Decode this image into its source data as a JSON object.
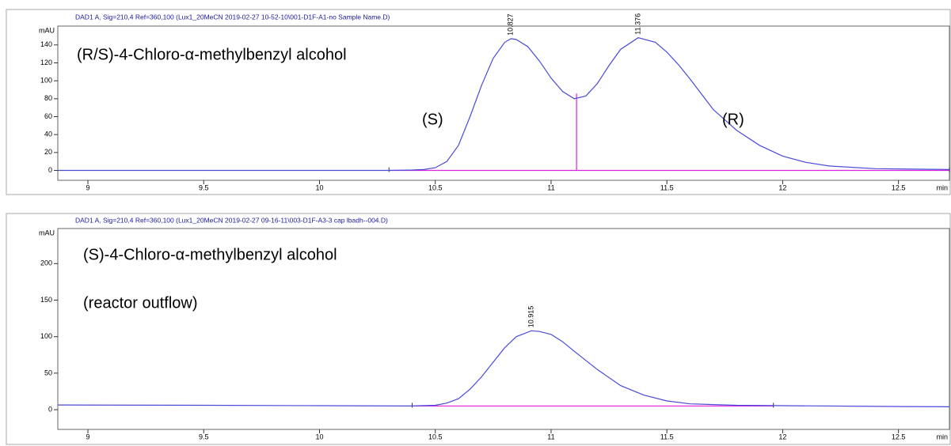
{
  "chart_data": [
    {
      "type": "line",
      "title": "DAD1 A, Sig=210,4 Ref=360,100 (Lux1_20MeCN 2019-02-27 10-52-10\\001-D1F-A1-no Sample Name.D)",
      "y_label": "mAU",
      "x_label": "min",
      "annotations": [
        "(R/S)-4-Chloro-α-methylbenzyl alcohol",
        "(S)",
        "(R)"
      ],
      "x": [
        8.87,
        9.5,
        10.0,
        10.3,
        10.4,
        10.45,
        10.5,
        10.55,
        10.6,
        10.65,
        10.7,
        10.75,
        10.8,
        10.827,
        10.85,
        10.9,
        10.95,
        11.0,
        11.05,
        11.1,
        11.15,
        11.2,
        11.25,
        11.3,
        11.376,
        11.45,
        11.5,
        11.55,
        11.6,
        11.7,
        11.8,
        11.9,
        12.0,
        12.1,
        12.2,
        12.4,
        12.72
      ],
      "values": [
        0,
        0,
        0,
        0,
        0.5,
        1,
        3,
        10,
        28,
        60,
        95,
        125,
        143,
        147,
        146,
        138,
        122,
        103,
        88,
        80,
        83,
        97,
        117,
        135,
        148,
        143,
        132,
        118,
        102,
        68,
        45,
        28,
        16,
        9,
        5,
        2,
        1
      ],
      "color": "#4a4ad8",
      "peaks": [
        10.827,
        11.376
      ],
      "integration": {
        "start": 10.3,
        "end": 12.72,
        "level": 0,
        "drops": [
          11.11
        ],
        "color": "#e020e0"
      },
      "xlim": [
        8.87,
        12.72
      ],
      "ylim": [
        -11,
        161
      ],
      "xticks": [
        9,
        9.5,
        10,
        10.5,
        11,
        11.5,
        12,
        12.5
      ],
      "yticks": [
        0,
        20,
        40,
        60,
        80,
        100,
        120,
        140
      ]
    },
    {
      "type": "line",
      "title": "DAD1 A, Sig=210,4 Ref=360,100 (Lux1_20MeCN 2019-02-27 09-16-11\\003-D1F-A3-3 cap lbadh--004.D)",
      "y_label": "mAU",
      "x_label": "min",
      "annotations": [
        "(S)-4-Chloro-α-methylbenzyl alcohol",
        "(reactor outflow)"
      ],
      "x": [
        8.87,
        9.5,
        10.0,
        10.4,
        10.5,
        10.55,
        10.6,
        10.65,
        10.7,
        10.75,
        10.8,
        10.85,
        10.915,
        10.95,
        11.0,
        11.05,
        11.1,
        11.2,
        11.3,
        11.4,
        11.5,
        11.6,
        11.8,
        12.0,
        12.4,
        12.72
      ],
      "values": [
        6.5,
        6,
        5.5,
        5,
        6,
        9,
        15,
        28,
        45,
        65,
        85,
        100,
        108,
        107,
        103,
        93,
        80,
        55,
        33,
        20,
        12,
        8,
        6,
        5.5,
        4.5,
        4
      ],
      "color": "#4a4ad8",
      "peaks": [
        10.915
      ],
      "integration": {
        "start": 10.4,
        "end": 11.96,
        "level": 5,
        "drops": [],
        "color": "#e020e0"
      },
      "xlim": [
        8.87,
        12.72
      ],
      "ylim": [
        -27,
        248
      ],
      "xticks": [
        9,
        9.5,
        10,
        10.5,
        11,
        11.5,
        12,
        12.5
      ],
      "yticks": [
        0,
        50,
        100,
        150,
        200
      ]
    }
  ]
}
